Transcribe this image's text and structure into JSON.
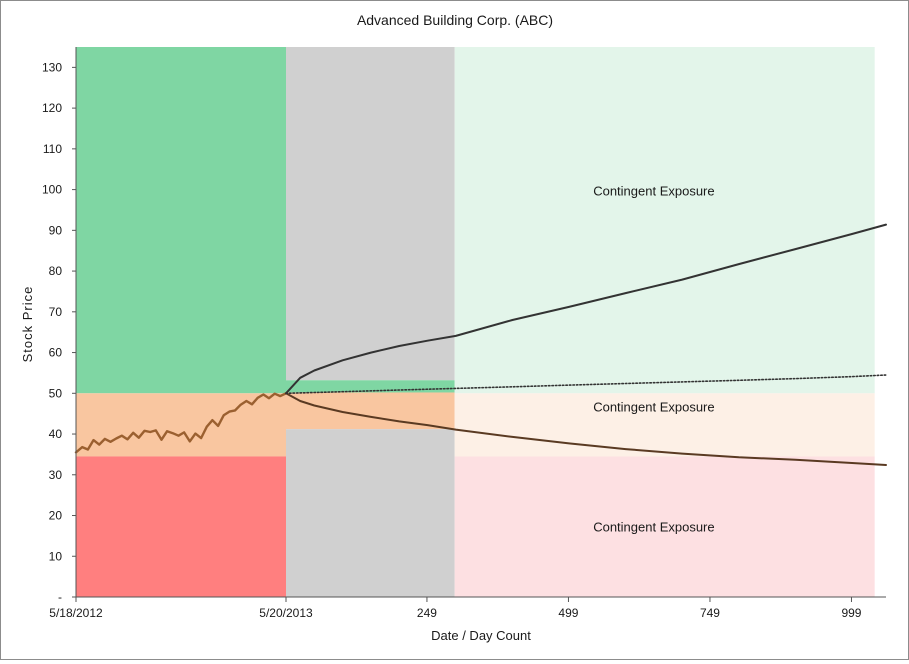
{
  "chart_data": {
    "type": "line",
    "title": "Advanced Building Corp. (ABC)",
    "xlabel": "Date / Day Count",
    "ylabel": "Stock Price",
    "ylim": [
      0,
      135
    ],
    "xlim": [
      -371,
      1060
    ],
    "y_ticks": [
      {
        "value": 0,
        "label": "-"
      },
      {
        "value": 10,
        "label": "10"
      },
      {
        "value": 20,
        "label": "20"
      },
      {
        "value": 30,
        "label": "30"
      },
      {
        "value": 40,
        "label": "40"
      },
      {
        "value": 50,
        "label": "50"
      },
      {
        "value": 60,
        "label": "60"
      },
      {
        "value": 70,
        "label": "70"
      },
      {
        "value": 80,
        "label": "80"
      },
      {
        "value": 90,
        "label": "90"
      },
      {
        "value": 100,
        "label": "100"
      },
      {
        "value": 110,
        "label": "110"
      },
      {
        "value": 120,
        "label": "120"
      },
      {
        "value": 130,
        "label": "130"
      }
    ],
    "x_ticks": [
      {
        "value": -371,
        "label": "5/18/2012"
      },
      {
        "value": 0,
        "label": "5/20/2013"
      },
      {
        "value": 249,
        "label": "249"
      },
      {
        "value": 499,
        "label": "499"
      },
      {
        "value": 749,
        "label": "749"
      },
      {
        "value": 999,
        "label": "999"
      }
    ],
    "grid": false,
    "regions": [
      {
        "x": [
          -371,
          0
        ],
        "y": [
          50,
          135
        ],
        "color": "#7fd6a3"
      },
      {
        "x": [
          -371,
          0
        ],
        "y": [
          34.5,
          50
        ],
        "color": "#f9c6a0"
      },
      {
        "x": [
          -371,
          0
        ],
        "y": [
          0,
          34.5
        ],
        "color": "#ff7f7f"
      },
      {
        "x": [
          0,
          298
        ],
        "y": [
          53.2,
          135
        ],
        "color": "#d0d0d0"
      },
      {
        "x": [
          0,
          298
        ],
        "y": [
          50.2,
          53.2
        ],
        "color": "#7fd6a3"
      },
      {
        "x": [
          0,
          298
        ],
        "y": [
          41.2,
          50.2
        ],
        "color": "#f9c6a0"
      },
      {
        "x": [
          0,
          298
        ],
        "y": [
          0,
          41.2
        ],
        "color": "#d0d0d0"
      },
      {
        "x": [
          298,
          1040
        ],
        "y": [
          50,
          135
        ],
        "color": "#e3f5ea"
      },
      {
        "x": [
          298,
          1040
        ],
        "y": [
          34.5,
          50
        ],
        "color": "#fdf0e6"
      },
      {
        "x": [
          298,
          1040
        ],
        "y": [
          0,
          34.5
        ],
        "color": "#fde0e2"
      }
    ],
    "annotations": [
      {
        "text": "Contingent Exposure",
        "x": 650,
        "y": 99.5
      },
      {
        "text": "Contingent Exposure",
        "x": 650,
        "y": 46.5
      },
      {
        "text": "Contingent Exposure",
        "x": 650,
        "y": 17
      }
    ],
    "series": [
      {
        "style": "historical",
        "color": "#9b6030",
        "x": [
          -371,
          -360,
          -350,
          -340,
          -330,
          -320,
          -310,
          -300,
          -290,
          -280,
          -270,
          -260,
          -250,
          -240,
          -230,
          -220,
          -210,
          -200,
          -190,
          -180,
          -170,
          -160,
          -150,
          -140,
          -130,
          -120,
          -110,
          -100,
          -90,
          -80,
          -70,
          -60,
          -50,
          -40,
          -30,
          -20,
          -10,
          0
        ],
        "y": [
          35.5,
          36.8,
          36.2,
          38.5,
          37.4,
          38.8,
          38.1,
          38.9,
          39.6,
          38.7,
          40.3,
          39.1,
          40.8,
          40.5,
          40.9,
          38.6,
          40.7,
          40.2,
          39.6,
          40.4,
          38.2,
          40.1,
          39.0,
          41.8,
          43.4,
          42.0,
          44.6,
          45.5,
          45.8,
          47.2,
          48.1,
          47.3,
          48.9,
          49.7,
          48.8,
          49.9,
          49.3,
          50.0
        ]
      },
      {
        "style": "upper-projection",
        "color": "#333333",
        "x": [
          0,
          25,
          50,
          100,
          150,
          200,
          250,
          300,
          400,
          500,
          600,
          700,
          800,
          900,
          1000,
          1060
        ],
        "y": [
          50,
          53.8,
          55.6,
          58.1,
          60.0,
          61.6,
          62.9,
          64.1,
          68.0,
          71.2,
          74.6,
          77.9,
          81.7,
          85.4,
          89.1,
          91.4
        ]
      },
      {
        "style": "lower-projection",
        "color": "#5a3a22",
        "x": [
          0,
          25,
          50,
          100,
          150,
          200,
          250,
          300,
          400,
          500,
          600,
          700,
          800,
          900,
          1000,
          1060
        ],
        "y": [
          50,
          48.1,
          47.0,
          45.4,
          44.2,
          43.1,
          42.2,
          41.1,
          39.3,
          37.7,
          36.3,
          35.2,
          34.3,
          33.7,
          32.9,
          32.4
        ]
      },
      {
        "style": "expected-path",
        "color": "#333333",
        "x": [
          0,
          100,
          200,
          300,
          400,
          500,
          600,
          700,
          800,
          900,
          1000,
          1060
        ],
        "y": [
          50.0,
          50.4,
          50.8,
          51.2,
          51.6,
          52.0,
          52.4,
          52.8,
          53.2,
          53.6,
          54.1,
          54.5
        ]
      }
    ]
  }
}
